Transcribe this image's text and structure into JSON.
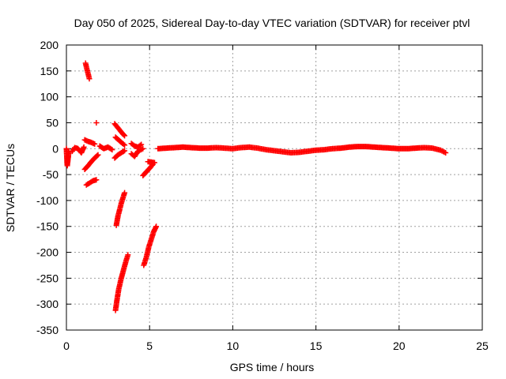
{
  "chart_data": {
    "type": "scatter",
    "title": "Day 050 of 2025, Sidereal Day-to-day VTEC variation (SDTVAR) for receiver ptvl",
    "xlabel": "GPS time / hours",
    "ylabel": "SDTVAR / TECUs",
    "xlim": [
      0,
      25
    ],
    "ylim": [
      -350,
      200
    ],
    "xticks": [
      0,
      5,
      10,
      15,
      20,
      25
    ],
    "yticks": [
      200,
      150,
      100,
      50,
      0,
      -50,
      -100,
      -150,
      -200,
      -250,
      -300,
      -350
    ],
    "grid": true,
    "legend": "none",
    "marker": "+",
    "color": "#ff0000",
    "series": [
      {
        "name": "SDTVAR",
        "segments": [
          {
            "x": [
              1.15,
              1.22,
              1.3,
              1.38
            ],
            "y": [
              165,
              155,
              145,
              135
            ]
          },
          {
            "x": [
              1.8
            ],
            "y": [
              50
            ]
          },
          {
            "x": [
              0.0,
              0.05,
              0.15
            ],
            "y": [
              0,
              -33,
              -5
            ]
          },
          {
            "x": [
              0.35,
              0.5,
              0.7,
              0.9,
              1.05
            ],
            "y": [
              -5,
              2,
              0,
              -8,
              3
            ]
          },
          {
            "x": [
              1.1,
              1.3,
              1.5,
              1.7,
              1.9
            ],
            "y": [
              -40,
              -33,
              -25,
              -18,
              -12
            ]
          },
          {
            "x": [
              1.1,
              1.3,
              1.5,
              1.7
            ],
            "y": [
              17,
              14,
              12,
              9
            ]
          },
          {
            "x": [
              1.2,
              1.4,
              1.6,
              1.8
            ],
            "y": [
              -70,
              -66,
              -62,
              -60
            ]
          },
          {
            "x": [
              2.0,
              2.25,
              2.5,
              2.75
            ],
            "y": [
              5,
              0,
              3,
              -2
            ]
          },
          {
            "x": [
              2.9,
              3.05,
              3.2,
              3.35,
              3.5
            ],
            "y": [
              48,
              42,
              36,
              30,
              25
            ]
          },
          {
            "x": [
              2.9,
              3.1,
              3.3,
              3.5
            ],
            "y": [
              -18,
              -12,
              -8,
              -4
            ]
          },
          {
            "x": [
              2.95,
              3.1,
              3.3,
              3.5
            ],
            "y": [
              22,
              18,
              12,
              7
            ]
          },
          {
            "x": [
              3.0,
              3.1,
              3.2,
              3.3,
              3.4,
              3.5
            ],
            "y": [
              -148,
              -130,
              -118,
              -105,
              -95,
              -85
            ]
          },
          {
            "x": [
              2.95,
              3.05,
              3.15,
              3.3,
              3.45,
              3.6,
              3.7
            ],
            "y": [
              -312,
              -290,
              -270,
              -250,
              -232,
              -215,
              -205
            ]
          },
          {
            "x": [
              3.9,
              4.1,
              4.3,
              4.5
            ],
            "y": [
              10,
              5,
              3,
              8
            ]
          },
          {
            "x": [
              3.9,
              4.1,
              4.3,
              4.6
            ],
            "y": [
              -10,
              -15,
              -5,
              0
            ]
          },
          {
            "x": [
              4.6,
              4.8,
              5.0,
              5.2
            ],
            "y": [
              -52,
              -45,
              -38,
              -30
            ]
          },
          {
            "x": [
              4.9,
              5.1,
              5.3
            ],
            "y": [
              -25,
              -26,
              -27
            ]
          },
          {
            "x": [
              4.65,
              4.8,
              4.95,
              5.1,
              5.25,
              5.4
            ],
            "y": [
              -225,
              -210,
              -190,
              -175,
              -160,
              -150
            ]
          },
          {
            "x": [
              5.5,
              6.0,
              6.5,
              7.0,
              7.5,
              8.0,
              8.5,
              9.0,
              9.5,
              10.0,
              10.5,
              11.0,
              11.5,
              12.0,
              12.5,
              13.0,
              13.5,
              14.0,
              14.5,
              15.0,
              15.5,
              16.0,
              16.5,
              17.0,
              17.5,
              18.0,
              18.5,
              19.0,
              19.5,
              20.0,
              20.5,
              21.0,
              21.5,
              22.0,
              22.5,
              22.8
            ],
            "y": [
              0,
              1,
              2,
              3,
              2,
              1,
              1,
              2,
              1,
              0,
              2,
              3,
              1,
              -2,
              -4,
              -6,
              -8,
              -7,
              -5,
              -3,
              -2,
              0,
              1,
              3,
              4,
              4,
              3,
              2,
              1,
              0,
              0,
              1,
              2,
              1,
              -3,
              -8
            ]
          }
        ]
      }
    ]
  }
}
